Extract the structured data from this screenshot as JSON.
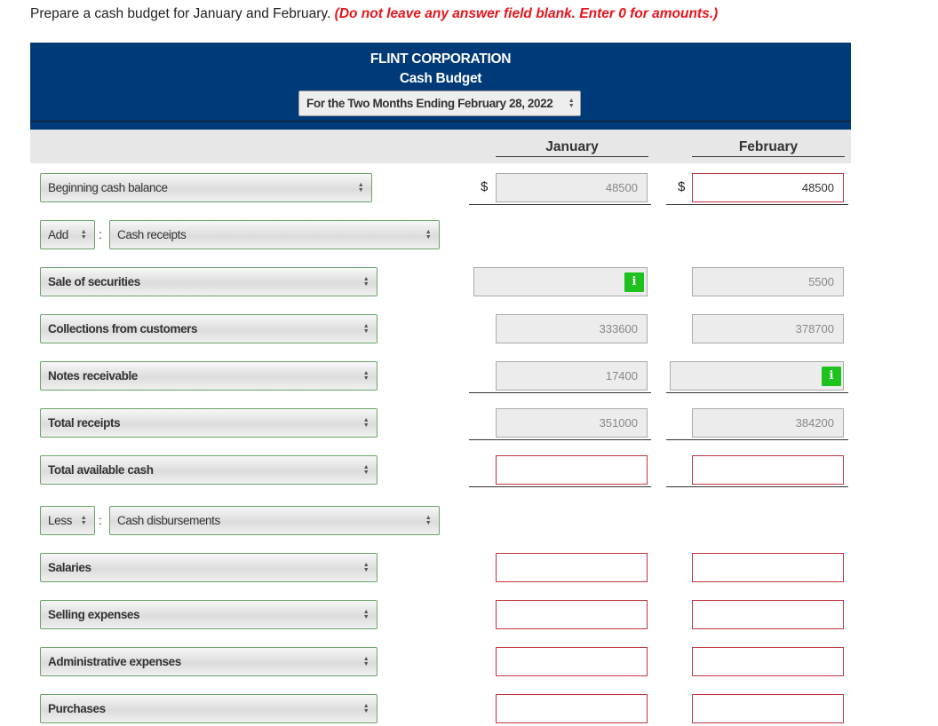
{
  "instruction": {
    "text": "Prepare a cash budget for January and February.",
    "note": "(Do not leave any answer field blank. Enter 0 for amounts.)"
  },
  "header": {
    "company": "FLINT CORPORATION",
    "title": "Cash Budget",
    "period": "For the Two Months Ending February 28, 2022"
  },
  "columns": {
    "january": "January",
    "february": "February"
  },
  "currency_symbol": "$",
  "rows": {
    "beginning": {
      "label": "Beginning cash balance",
      "jan": "48500",
      "feb": "48500"
    },
    "add": {
      "op": "Add",
      "label": "Cash receipts"
    },
    "securities": {
      "label": "Sale of securities",
      "jan": "",
      "feb": "5500"
    },
    "collections": {
      "label": "Collections from customers",
      "jan": "333600",
      "feb": "378700"
    },
    "notes": {
      "label": "Notes receivable",
      "jan": "17400",
      "feb": ""
    },
    "total_receipts": {
      "label": "Total receipts",
      "jan": "351000",
      "feb": "384200"
    },
    "total_available": {
      "label": "Total available cash",
      "jan": "",
      "feb": ""
    },
    "less": {
      "op": "Less",
      "label": "Cash disbursements"
    },
    "salaries": {
      "label": "Salaries",
      "jan": "",
      "feb": ""
    },
    "selling": {
      "label": "Selling expenses",
      "jan": "",
      "feb": ""
    },
    "admin": {
      "label": "Administrative expenses",
      "jan": "",
      "feb": ""
    },
    "purchases": {
      "label": "Purchases",
      "jan": "",
      "feb": ""
    }
  },
  "info_button_text": "i",
  "colors": {
    "banner": "#003a79",
    "info_button": "#1ec21e",
    "error_border": "#c0343c",
    "select_border": "#6aa36a"
  },
  "icons": {
    "select_arrows": "up-down-arrows-icon"
  }
}
